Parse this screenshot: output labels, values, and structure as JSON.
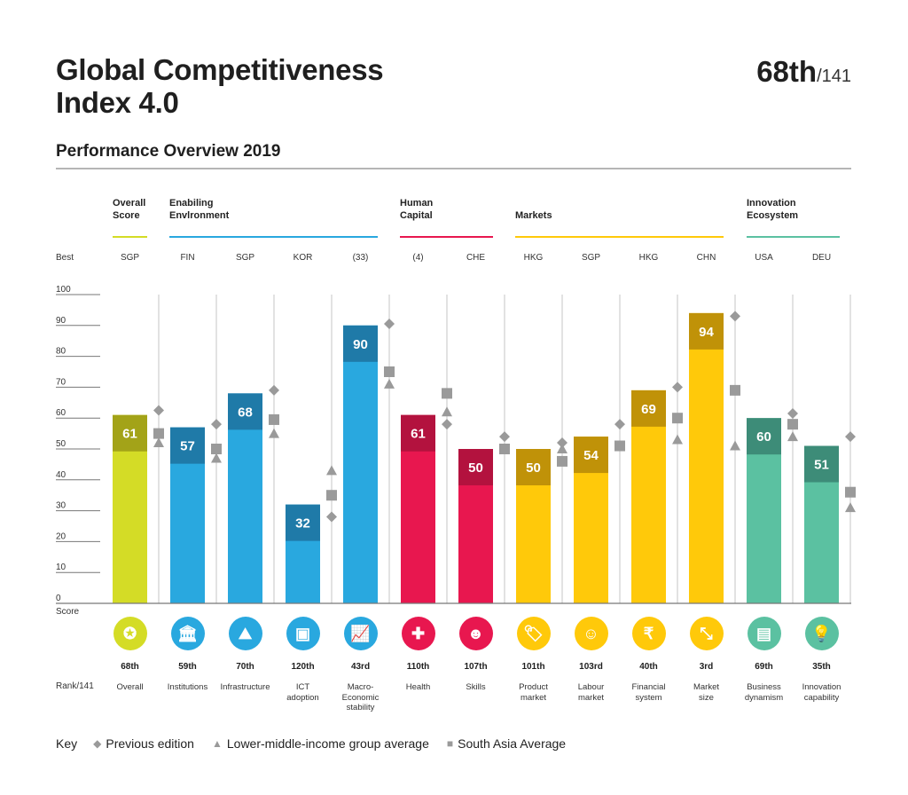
{
  "header": {
    "title_line1": "Global Competitiveness",
    "title_line2": "Index 4.0",
    "rank": "68th",
    "rank_total": "/141",
    "subtitle": "Performance Overview 2019"
  },
  "groups": [
    {
      "label_line1": "Overall",
      "label_line2": "Score",
      "color": "#d4dc26"
    },
    {
      "label_line1": "Enabiling",
      "label_line2": "Envlronment",
      "color": "#29a8df"
    },
    {
      "label_line1": "Human",
      "label_line2": "Capital",
      "color": "#e8174f"
    },
    {
      "label_line1": "",
      "label_line2": "Markets",
      "color": "#ffc90a"
    },
    {
      "label_line1": "Innovation",
      "label_line2": "Ecosystem",
      "color": "#5bc1a1"
    }
  ],
  "labels": {
    "best": "Best",
    "score": "Score",
    "rank": "Rank/141"
  },
  "chart_data": {
    "type": "bar",
    "title": "Performance Overview 2019",
    "ylabel": "Score",
    "ylim": [
      0,
      100
    ],
    "yticks": [
      0,
      10,
      20,
      30,
      40,
      50,
      60,
      70,
      80,
      90,
      100
    ],
    "categories": [
      "Overall",
      "Institutions",
      "Infrastructure",
      "ICT adoption",
      "Macro-Economic stability",
      "Health",
      "Skills",
      "Product market",
      "Labour market",
      "Financial system",
      "Market size",
      "Business dynamism",
      "Innovation capability"
    ],
    "best": [
      "SGP",
      "FIN",
      "SGP",
      "KOR",
      "(33)",
      "(4)",
      "CHE",
      "HKG",
      "SGP",
      "HKG",
      "CHN",
      "USA",
      "DEU"
    ],
    "ranks": [
      "68th",
      "59th",
      "70th",
      "120th",
      "43rd",
      "110th",
      "107th",
      "101th",
      "103rd",
      "40th",
      "3rd",
      "69th",
      "35th"
    ],
    "name_lines": [
      [
        "Overall"
      ],
      [
        "Institutions"
      ],
      [
        "Infrastructure"
      ],
      [
        "ICT",
        "adoption"
      ],
      [
        "Macro-",
        "Economic",
        "stability"
      ],
      [
        "Health"
      ],
      [
        "Skills"
      ],
      [
        "Product",
        "market"
      ],
      [
        "Labour",
        "market"
      ],
      [
        "Financial",
        "system"
      ],
      [
        "Market",
        "size"
      ],
      [
        "Business",
        "dynamism"
      ],
      [
        "Innovation",
        "capability"
      ]
    ],
    "group_index": [
      0,
      1,
      1,
      1,
      1,
      2,
      2,
      3,
      3,
      3,
      3,
      4,
      4
    ],
    "series": [
      {
        "name": "Score",
        "values": [
          61,
          57,
          68,
          32,
          90,
          61,
          50,
          50,
          54,
          69,
          94,
          60,
          51
        ]
      },
      {
        "name": "Previous edition",
        "marker": "diamond",
        "values": [
          62.5,
          58,
          69,
          28,
          90.5,
          58,
          54,
          52,
          58,
          70,
          93,
          61.5,
          54
        ]
      },
      {
        "name": "Lower-middle-income group average",
        "marker": "triangle",
        "values": [
          52,
          47,
          55,
          43,
          71,
          62,
          50,
          50,
          51,
          53,
          51,
          54,
          31
        ]
      },
      {
        "name": "South Asia Average",
        "marker": "square",
        "values": [
          55,
          50,
          59.5,
          35,
          75,
          68,
          50,
          46,
          51,
          60,
          69,
          58,
          36
        ]
      }
    ],
    "colors": {
      "light": [
        "#d4dc26",
        "#29a8df",
        "#29a8df",
        "#29a8df",
        "#29a8df",
        "#e8174f",
        "#e8174f",
        "#ffc90a",
        "#ffc90a",
        "#ffc90a",
        "#ffc90a",
        "#5bc1a1",
        "#5bc1a1"
      ],
      "dark": [
        "#a3a318",
        "#1f7aa8",
        "#1f7aa8",
        "#1f7aa8",
        "#1f7aa8",
        "#b3123e",
        "#b3123e",
        "#c09208",
        "#c09208",
        "#c09208",
        "#c09208",
        "#3d8c78",
        "#3d8c78"
      ],
      "marker": "#9a9a9a"
    },
    "legend": "bottom-left"
  },
  "icons": [
    "award-ribbon-icon",
    "institution-building-icon",
    "road-tunnel-icon",
    "microchip-icon",
    "growth-bar-chart-icon",
    "medical-cross-icon",
    "head-network-icon",
    "price-tag-icon",
    "worker-helmet-icon",
    "rupee-icon",
    "expand-arrows-icon",
    "office-building-icon",
    "lightbulb-icon"
  ],
  "icon_glyphs": [
    "✪",
    "🏛",
    "⛰",
    "▣",
    "📈",
    "✚",
    "☻",
    "🏷",
    "☺",
    "₹",
    "⤡",
    "▤",
    "💡"
  ],
  "key": {
    "title": "Key",
    "items": [
      {
        "symbol": "◆",
        "label": "Previous edition"
      },
      {
        "symbol": "▲",
        "label": "Lower-middle-income group average"
      },
      {
        "symbol": "■",
        "label": "South Asia Average"
      }
    ]
  }
}
